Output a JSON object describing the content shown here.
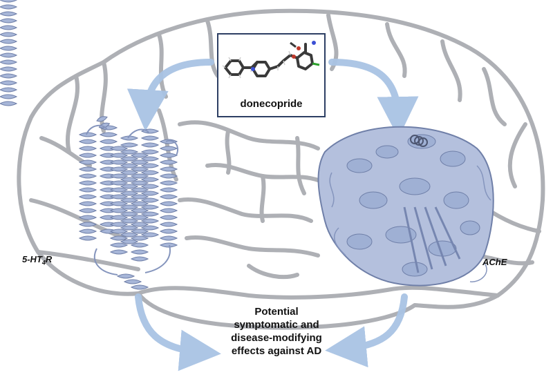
{
  "molecule": {
    "name": "donecopride"
  },
  "targets": [
    {
      "prefix": "5-HT",
      "sub": "4",
      "suffix": "R"
    },
    {
      "prefix": "AChE",
      "sub": "",
      "suffix": ""
    }
  ],
  "outcome": {
    "lines": [
      "Potential",
      "symptomatic and",
      "disease-modifying",
      "effects against AD"
    ]
  },
  "colors": {
    "brain_outline": "#aeb0b5",
    "protein": "#9fb0d4",
    "arrow": "#a9c3e4",
    "box_border": "#2c3e63"
  }
}
